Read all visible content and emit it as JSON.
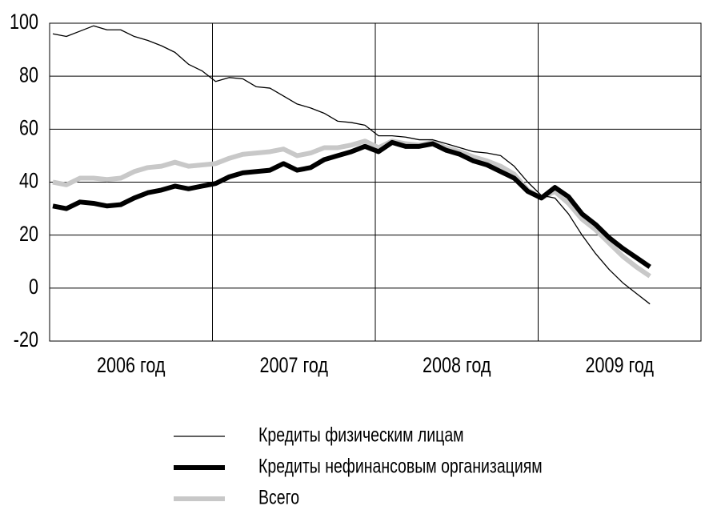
{
  "chart_data": {
    "type": "line",
    "categories": [
      null,
      null,
      null,
      null,
      null,
      null,
      null,
      null,
      null,
      null,
      null,
      null,
      null,
      null,
      null,
      null,
      null,
      null,
      null,
      null,
      null,
      null,
      null,
      null,
      null,
      null,
      null,
      null,
      null,
      null,
      null,
      null,
      null,
      null,
      null,
      null,
      null,
      null,
      null,
      null,
      null,
      null,
      null,
      null,
      null
    ],
    "year_labels": [
      "2006 год",
      "2007 год",
      "2008 год",
      "2009 год"
    ],
    "series": [
      {
        "name": "Кредиты физическим лицам",
        "color": "#000000",
        "width": 1.3,
        "values": [
          96,
          95,
          97,
          99,
          97.5,
          97.5,
          95,
          93.5,
          91.5,
          89,
          84.5,
          82,
          78,
          79.5,
          79,
          76,
          75.5,
          72.5,
          69.5,
          68,
          66,
          63,
          62.5,
          61.5,
          57.5,
          57.5,
          57,
          56,
          56,
          54.5,
          53,
          51.5,
          51,
          50,
          46,
          40,
          35,
          34,
          28,
          20,
          13,
          7,
          2,
          -2,
          -6
        ]
      },
      {
        "name": "Кредиты нефинансовым организациям",
        "color": "#000000",
        "width": 6,
        "values": [
          31,
          30,
          32.5,
          32,
          31,
          31.5,
          34,
          36,
          37,
          38.5,
          37.5,
          38.5,
          39.5,
          42,
          43.5,
          44,
          44.5,
          47,
          44.5,
          45.5,
          48.5,
          50,
          51.5,
          53.5,
          51.5,
          55,
          53.5,
          53.5,
          54.5,
          52,
          50.5,
          48,
          46.5,
          44,
          41.5,
          36.5,
          34,
          38,
          34.5,
          28,
          24,
          19,
          15,
          11.5,
          8
        ]
      },
      {
        "name": "Всего",
        "color": "#c8c8c8",
        "width": 6,
        "values": [
          40,
          39,
          41.5,
          41.5,
          41,
          41.5,
          44,
          45.5,
          46,
          47.5,
          46,
          46.5,
          47,
          49,
          50.5,
          51,
          51.5,
          52.5,
          50,
          51,
          53,
          53,
          54,
          55.5,
          53,
          55.5,
          54.5,
          54,
          55,
          53,
          51.5,
          49.5,
          48,
          46,
          43,
          37,
          34,
          36.5,
          32,
          26,
          22,
          17,
          12,
          8,
          4.5
        ]
      }
    ],
    "ylim": [
      -20,
      100
    ],
    "yticks": [
      -20,
      0,
      20,
      40,
      60,
      80,
      100
    ],
    "grid": true
  }
}
